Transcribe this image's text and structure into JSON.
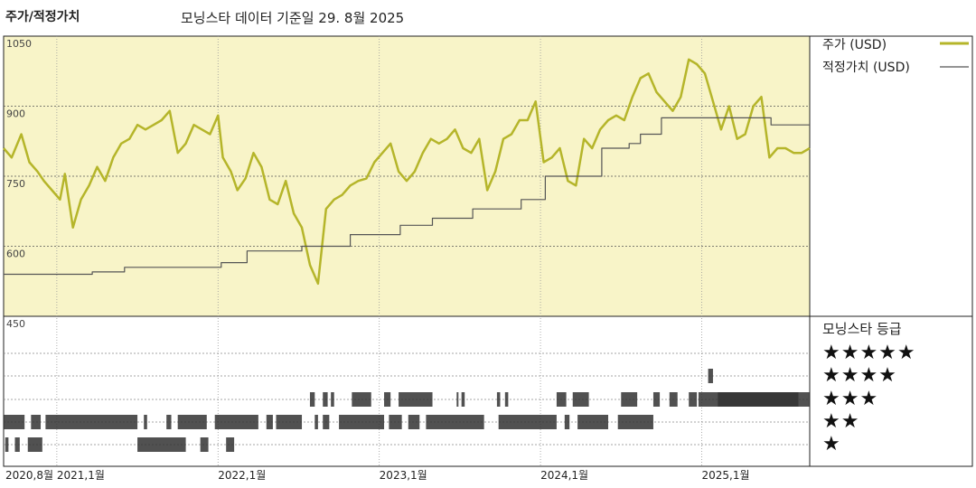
{
  "header": {
    "title": "주가/적정가치",
    "subtitle": "모닝스타 데이터 기준일 29. 8월 2025"
  },
  "legend": {
    "price_label": "주가 (USD)",
    "fair_label": "적정가치 (USD)",
    "rating_title": "모닝스타 등급"
  },
  "colors": {
    "price": "#b5b52a",
    "fair": "#555555",
    "plot_bg": "#f8f4c8",
    "rating_bar": "#333333"
  },
  "chart_data": {
    "type": "line",
    "ylim": [
      450,
      1050
    ],
    "yticks": [
      1050,
      900,
      750,
      600,
      450
    ],
    "x_range": [
      2020.67,
      2025.67
    ],
    "xtick_labels": [
      {
        "x": 2020.67,
        "label": "2020,8월"
      },
      {
        "x": 2021.0,
        "label": "2021,1월"
      },
      {
        "x": 2022.0,
        "label": "2022,1월"
      },
      {
        "x": 2023.0,
        "label": "2023,1월"
      },
      {
        "x": 2024.0,
        "label": "2024,1월"
      },
      {
        "x": 2025.0,
        "label": "2025,1월"
      }
    ],
    "series": [
      {
        "name": "주가 (USD)",
        "x": [
          2020.67,
          2020.72,
          2020.78,
          2020.83,
          2020.88,
          2020.92,
          2020.97,
          2021.02,
          2021.05,
          2021.1,
          2021.15,
          2021.2,
          2021.25,
          2021.3,
          2021.35,
          2021.4,
          2021.45,
          2021.5,
          2021.55,
          2021.6,
          2021.65,
          2021.7,
          2021.75,
          2021.8,
          2021.85,
          2021.9,
          2021.95,
          2022.0,
          2022.03,
          2022.08,
          2022.12,
          2022.17,
          2022.22,
          2022.27,
          2022.32,
          2022.37,
          2022.42,
          2022.47,
          2022.52,
          2022.57,
          2022.62,
          2022.67,
          2022.72,
          2022.77,
          2022.82,
          2022.87,
          2022.92,
          2022.97,
          2023.02,
          2023.07,
          2023.12,
          2023.17,
          2023.22,
          2023.27,
          2023.32,
          2023.37,
          2023.42,
          2023.47,
          2023.52,
          2023.57,
          2023.62,
          2023.67,
          2023.72,
          2023.77,
          2023.82,
          2023.87,
          2023.92,
          2023.97,
          2024.02,
          2024.07,
          2024.12,
          2024.17,
          2024.22,
          2024.27,
          2024.32,
          2024.37,
          2024.42,
          2024.47,
          2024.52,
          2024.57,
          2024.62,
          2024.67,
          2024.72,
          2024.77,
          2024.82,
          2024.87,
          2024.92,
          2024.97,
          2025.02,
          2025.07,
          2025.12,
          2025.17,
          2025.22,
          2025.27,
          2025.32,
          2025.37,
          2025.42,
          2025.47,
          2025.52,
          2025.57,
          2025.62,
          2025.67
        ],
        "values": [
          810,
          790,
          840,
          780,
          760,
          740,
          720,
          700,
          755,
          640,
          700,
          730,
          770,
          740,
          790,
          820,
          830,
          860,
          850,
          860,
          870,
          890,
          800,
          820,
          860,
          850,
          840,
          880,
          790,
          760,
          720,
          745,
          800,
          770,
          700,
          690,
          740,
          670,
          640,
          560,
          520,
          680,
          700,
          710,
          730,
          740,
          745,
          780,
          800,
          820,
          760,
          740,
          760,
          800,
          830,
          820,
          830,
          850,
          810,
          800,
          830,
          720,
          760,
          830,
          840,
          870,
          870,
          910,
          780,
          790,
          810,
          740,
          730,
          830,
          810,
          850,
          870,
          880,
          870,
          920,
          960,
          970,
          930,
          910,
          890,
          920,
          1000,
          990,
          970,
          910,
          850,
          900,
          830,
          840,
          900,
          920,
          790,
          810,
          810,
          800,
          800,
          810
        ]
      },
      {
        "name": "적정가치 (USD)",
        "x": [
          2020.67,
          2021.22,
          2021.22,
          2021.42,
          2021.42,
          2022.02,
          2022.02,
          2022.18,
          2022.18,
          2022.52,
          2022.52,
          2022.82,
          2022.82,
          2023.13,
          2023.13,
          2023.33,
          2023.33,
          2023.58,
          2023.58,
          2023.88,
          2023.88,
          2024.03,
          2024.03,
          2024.38,
          2024.38,
          2024.55,
          2024.55,
          2024.62,
          2024.62,
          2024.75,
          2024.75,
          2025.43,
          2025.43,
          2025.67
        ],
        "values": [
          540,
          540,
          545,
          545,
          555,
          555,
          565,
          565,
          590,
          590,
          600,
          600,
          625,
          625,
          645,
          645,
          660,
          660,
          680,
          680,
          700,
          700,
          750,
          750,
          810,
          810,
          820,
          820,
          840,
          840,
          875,
          875,
          860,
          860
        ]
      }
    ]
  },
  "ratings": {
    "rows": [
      "★★★★★",
      "★★★★",
      "★★★",
      "★★",
      "★"
    ],
    "spans": [
      {
        "stars": 1,
        "ranges": [
          [
            2020.68,
            2020.7
          ],
          [
            2020.74,
            2020.77
          ],
          [
            2020.82,
            2020.91
          ],
          [
            2021.5,
            2021.8
          ],
          [
            2021.89,
            2021.94
          ],
          [
            2022.05,
            2022.1
          ]
        ]
      },
      {
        "stars": 2,
        "ranges": [
          [
            2020.67,
            2020.8
          ],
          [
            2020.84,
            2020.9
          ],
          [
            2020.93,
            2021.5
          ],
          [
            2021.54,
            2021.56
          ],
          [
            2021.68,
            2021.71
          ],
          [
            2021.75,
            2021.93
          ],
          [
            2021.98,
            2022.25
          ],
          [
            2022.3,
            2022.34
          ],
          [
            2022.36,
            2022.52
          ],
          [
            2022.6,
            2022.62
          ],
          [
            2022.65,
            2022.69
          ],
          [
            2022.75,
            2023.03
          ],
          [
            2023.06,
            2023.14
          ],
          [
            2023.18,
            2023.25
          ],
          [
            2023.29,
            2023.65
          ],
          [
            2023.74,
            2024.1
          ],
          [
            2024.15,
            2024.18
          ],
          [
            2024.23,
            2024.42
          ],
          [
            2024.48,
            2024.7
          ]
        ]
      },
      {
        "stars": 3,
        "ranges": [
          [
            2022.57,
            2022.6
          ],
          [
            2022.65,
            2022.68
          ],
          [
            2022.7,
            2022.72
          ],
          [
            2022.83,
            2022.95
          ],
          [
            2023.03,
            2023.07
          ],
          [
            2023.12,
            2023.33
          ],
          [
            2023.48,
            2023.49
          ],
          [
            2023.51,
            2023.53
          ],
          [
            2023.73,
            2023.75
          ],
          [
            2023.78,
            2023.8
          ],
          [
            2024.1,
            2024.16
          ],
          [
            2024.2,
            2024.3
          ],
          [
            2024.5,
            2024.6
          ],
          [
            2024.7,
            2024.74
          ],
          [
            2024.8,
            2024.85
          ],
          [
            2024.92,
            2024.97
          ],
          [
            2024.98,
            2025.6
          ],
          [
            2025.1,
            2025.67
          ]
        ]
      },
      {
        "stars": 4,
        "ranges": [
          [
            2025.04,
            2025.07
          ]
        ]
      }
    ]
  }
}
